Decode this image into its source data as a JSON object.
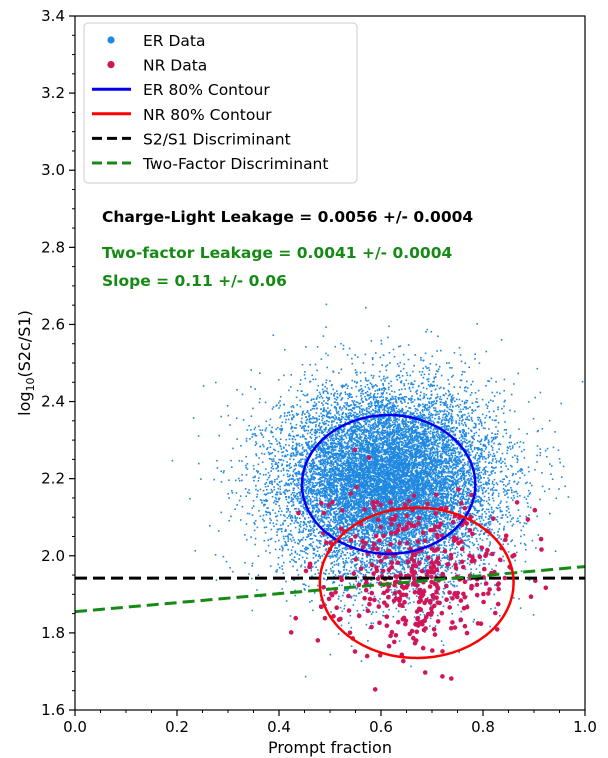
{
  "chart_data": {
    "type": "scatter",
    "title": "",
    "xlabel": "Prompt fraction",
    "ylabel_prefix": "log",
    "ylabel_sub": "10",
    "ylabel_suffix": "(S2c/S1)",
    "xlim": [
      0.0,
      1.0
    ],
    "ylim": [
      1.6,
      3.4
    ],
    "x_ticks": [
      0.0,
      0.2,
      0.4,
      0.6,
      0.8,
      1.0
    ],
    "x_tick_labels": [
      "0.0",
      "0.2",
      "0.4",
      "0.6",
      "0.8",
      "1.0"
    ],
    "y_ticks": [
      1.6,
      1.8,
      2.0,
      2.2,
      2.4,
      2.6,
      2.8,
      3.0,
      3.2,
      3.4
    ],
    "y_tick_labels": [
      "1.6",
      "1.8",
      "2.0",
      "2.2",
      "2.4",
      "2.6",
      "2.8",
      "3.0",
      "3.2",
      "3.4"
    ],
    "grid": false,
    "legend_position": "top-left",
    "legend": [
      {
        "label": "ER Data",
        "kind": "marker",
        "color": "#1f88e0"
      },
      {
        "label": "NR Data",
        "kind": "marker",
        "color": "#d0155a"
      },
      {
        "label": "ER 80% Contour",
        "kind": "line",
        "color": "#0000ee",
        "dash": false
      },
      {
        "label": "NR 80% Contour",
        "kind": "line",
        "color": "#ff0000",
        "dash": false
      },
      {
        "label": "S2/S1 Discriminant",
        "kind": "line",
        "color": "#000000",
        "dash": true
      },
      {
        "label": "Two-Factor Discriminant",
        "kind": "line",
        "color": "#158a15",
        "dash": true
      }
    ],
    "annotations": [
      {
        "text": "Charge-Light Leakage = 0.0056 +/- 0.0004",
        "color": "#000000"
      },
      {
        "text": "Two-factor Leakage = 0.0041 +/- 0.0004",
        "color": "#158a15"
      },
      {
        "text": "Slope = 0.11 +/- 0.06",
        "color": "#158a15"
      }
    ],
    "er_data": {
      "name": "ER Data",
      "color": "#1f88e0",
      "distribution": "gaussian",
      "center": [
        0.615,
        2.19
      ],
      "spread": [
        0.105,
        0.12
      ],
      "approx_points": 14000
    },
    "nr_data": {
      "name": "NR Data",
      "color": "#d0155a",
      "distribution": "gaussian",
      "center": [
        0.665,
        1.95
      ],
      "spread": [
        0.09,
        0.1
      ],
      "approx_points": 420
    },
    "er_contour": {
      "name": "ER 80% Contour",
      "color": "#0000ee",
      "center": [
        0.615,
        2.185
      ],
      "semi_axes": [
        0.17,
        0.18
      ]
    },
    "nr_contour": {
      "name": "NR 80% Contour",
      "color": "#ff0000",
      "center": [
        0.67,
        1.93
      ],
      "semi_axes": [
        0.19,
        0.195
      ]
    },
    "s2s1_discriminant": {
      "name": "S2/S1 Discriminant",
      "color": "#000000",
      "y": 1.942
    },
    "two_factor_discriminant": {
      "name": "Two-Factor Discriminant",
      "color": "#158a15",
      "points": [
        [
          0.0,
          1.855
        ],
        [
          1.0,
          1.972
        ]
      ]
    }
  }
}
